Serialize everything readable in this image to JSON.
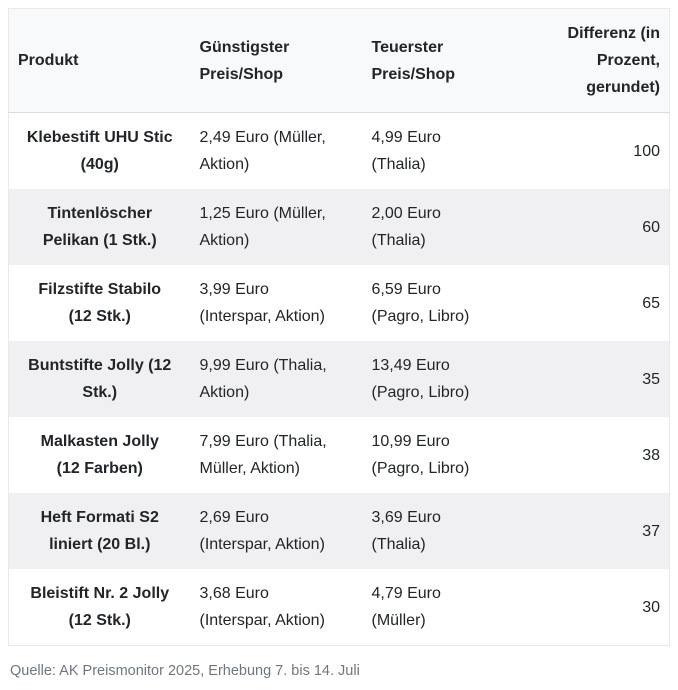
{
  "chart_data": {
    "type": "table",
    "columns": [
      "Produkt",
      "Günstigster Preis/Shop",
      "Teuerster Preis/Shop",
      "Differenz (in Prozent, gerundet)"
    ],
    "rows": [
      [
        "Klebestift UHU Stic (40g)",
        "2,49 Euro (Müller, Aktion)",
        "4,99 Euro (Thalia)",
        100
      ],
      [
        "Tintenlöscher Pelikan (1 Stk.)",
        "1,25 Euro (Müller, Aktion)",
        "2,00 Euro (Thalia)",
        60
      ],
      [
        "Filzstifte Stabilo (12 Stk.)",
        "3,99 Euro (Interspar, Aktion)",
        "6,59 Euro (Pagro, Libro)",
        65
      ],
      [
        "Buntstifte Jolly (12 Stk.)",
        "9,99 Euro (Thalia, Aktion)",
        "13,49 Euro (Pagro, Libro)",
        35
      ],
      [
        "Malkasten Jolly (12 Farben)",
        "7,99 Euro (Thalia, Müller, Aktion)",
        "10,99 Euro (Pagro, Libro)",
        38
      ],
      [
        "Heft Formati S2 liniert (20 Bl.)",
        "2,69 Euro (Interspar, Aktion)",
        "3,69 Euro (Thalia)",
        37
      ],
      [
        "Bleistift Nr. 2 Jolly (12 Stk.)",
        "3,68 Euro (Interspar, Aktion)",
        "4,79 Euro (Müller)",
        30
      ]
    ],
    "source": "Quelle: AK Preismonitor 2025, Erhebung 7. bis 14. Juli"
  },
  "table": {
    "headers": {
      "product": "Produkt",
      "cheapest": "Günstigster\nPreis/Shop",
      "expensive": "Teuerster\nPreis/Shop",
      "diff": "Differenz (in\nProzent,\ngerundet)"
    },
    "rows": [
      {
        "product": "Klebestift UHU Stic\n(40g)",
        "cheapest": "2,49 Euro (Müller,\nAktion)",
        "expensive": "4,99 Euro\n(Thalia)",
        "diff": "100"
      },
      {
        "product": "Tintenlöscher\nPelikan (1 Stk.)",
        "cheapest": "1,25 Euro (Müller,\nAktion)",
        "expensive": "2,00 Euro\n(Thalia)",
        "diff": "60"
      },
      {
        "product": "Filzstifte Stabilo\n(12 Stk.)",
        "cheapest": "3,99 Euro\n(Interspar, Aktion)",
        "expensive": "6,59 Euro\n(Pagro, Libro)",
        "diff": "65"
      },
      {
        "product": "Buntstifte Jolly (12\nStk.)",
        "cheapest": "9,99 Euro (Thalia,\nAktion)",
        "expensive": "13,49 Euro\n(Pagro, Libro)",
        "diff": "35"
      },
      {
        "product": "Malkasten Jolly\n(12 Farben)",
        "cheapest": "7,99 Euro (Thalia,\nMüller, Aktion)",
        "expensive": "10,99 Euro\n(Pagro, Libro)",
        "diff": "38"
      },
      {
        "product": "Heft Formati S2\nliniert (20 Bl.)",
        "cheapest": "2,69 Euro\n(Interspar, Aktion)",
        "expensive": "3,69 Euro\n(Thalia)",
        "diff": "37"
      },
      {
        "product": "Bleistift Nr. 2 Jolly\n(12 Stk.)",
        "cheapest": "3,68 Euro\n(Interspar, Aktion)",
        "expensive": "4,79 Euro\n(Müller)",
        "diff": "30"
      }
    ]
  },
  "footer": {
    "source": "Quelle: AK Preismonitor 2025, Erhebung 7. bis 14. Juli"
  }
}
